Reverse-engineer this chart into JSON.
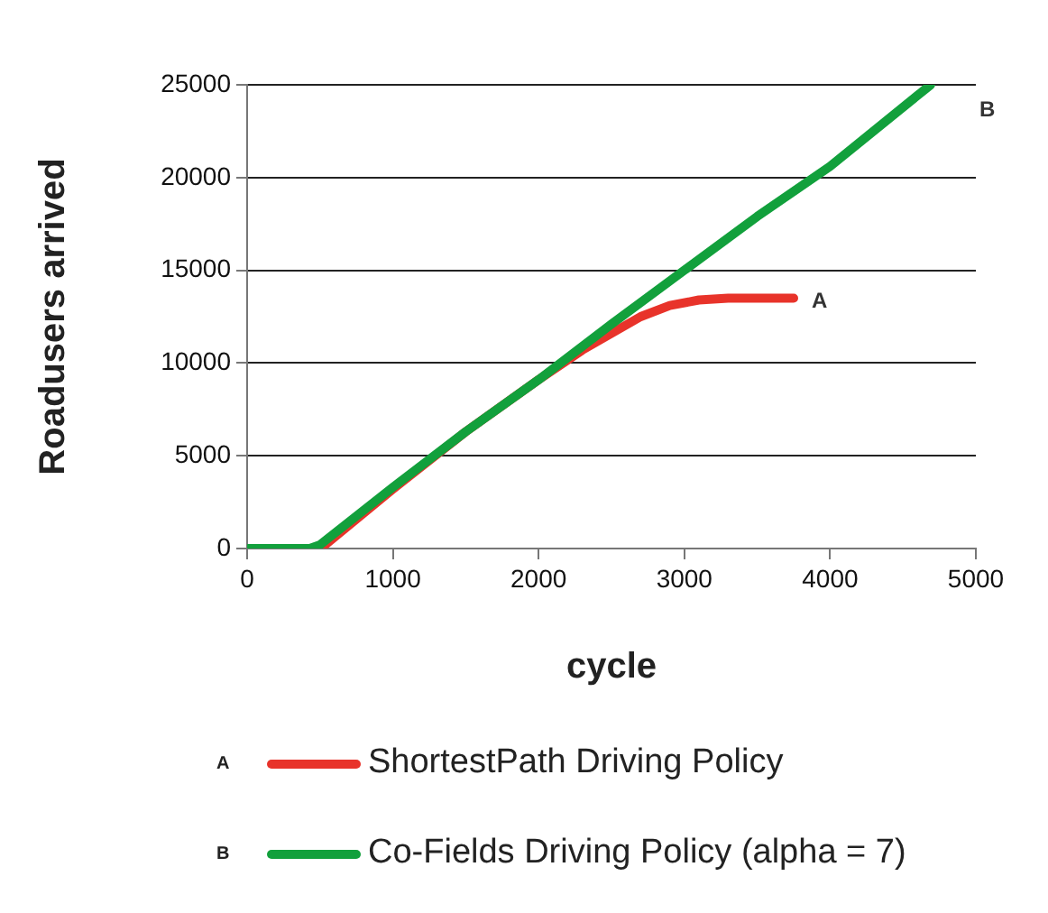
{
  "chart_data": {
    "type": "line",
    "xlabel": "cycle",
    "ylabel": "Roadusers arrived",
    "xlim": [
      0,
      5000
    ],
    "xticks": [
      0,
      1000,
      2000,
      3000,
      4000,
      5000
    ],
    "ylim": [
      0,
      25000
    ],
    "yticks": [
      0,
      5000,
      10000,
      15000,
      20000,
      25000
    ],
    "grid": "y",
    "legend": "bottom",
    "marker": "none",
    "line_style": "solid",
    "series": [
      {
        "name": "ShortestPath Driving Policy",
        "color": "#e8332a",
        "x": [
          0,
          450,
          520,
          1000,
          1500,
          2000,
          2300,
          2500,
          2700,
          2900,
          3100,
          3300,
          3750
        ],
        "values": [
          0,
          0,
          100,
          3200,
          6300,
          9100,
          10700,
          11600,
          12500,
          13100,
          13400,
          13500,
          13500
        ]
      },
      {
        "name": "Co-Fields Driving Policy (alpha = 7)",
        "color": "#12a03c",
        "x": [
          0,
          430,
          500,
          1000,
          1500,
          2000,
          2500,
          3000,
          3500,
          4000,
          4690
        ],
        "values": [
          0,
          0,
          200,
          3300,
          6300,
          9100,
          12100,
          15000,
          17900,
          20600,
          25000
        ]
      }
    ],
    "annotations": [
      "A",
      "B",
      {
        "text": "A",
        "x": 3750,
        "y": 13500
      },
      {
        "text": "B",
        "x": 4690,
        "y": 25000
      }
    ]
  }
}
